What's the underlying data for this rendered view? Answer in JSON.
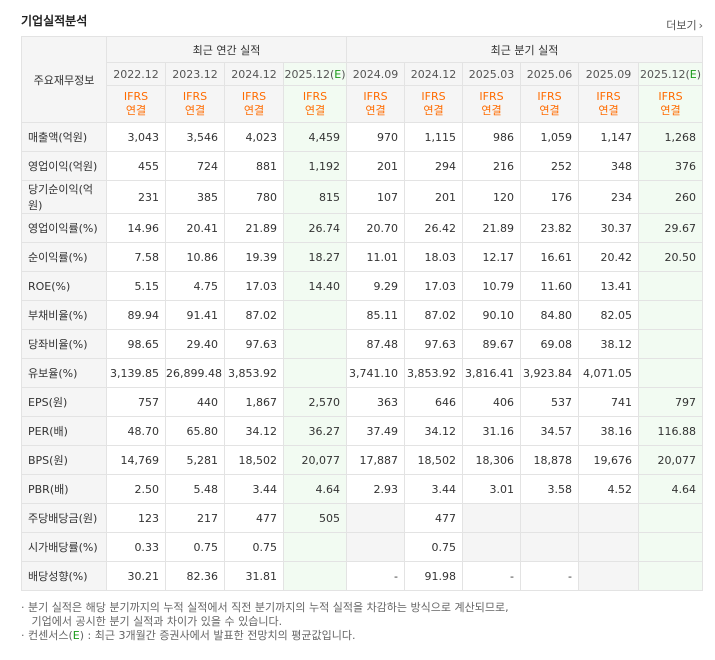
{
  "header": {
    "title": "기업실적분석",
    "more_label": "더보기"
  },
  "table": {
    "corner_label": "주요재무정보",
    "annual_label": "최근 연간 실적",
    "quarter_label": "최근 분기 실적",
    "annual_periods": [
      "2022.12",
      "2023.12",
      "2024.12",
      "2025.12(E)"
    ],
    "quarter_periods": [
      "2024.09",
      "2024.12",
      "2025.03",
      "2025.06",
      "2025.09",
      "2025.12(E)"
    ],
    "basis_line1": "IFRS",
    "basis_line2": "연결",
    "rows": [
      {
        "label": "매출액(억원)",
        "values": [
          "3,043",
          "3,546",
          "4,023",
          "4,459",
          "970",
          "1,115",
          "986",
          "1,059",
          "1,147",
          "1,268"
        ]
      },
      {
        "label": "영업이익(억원)",
        "values": [
          "455",
          "724",
          "881",
          "1,192",
          "201",
          "294",
          "216",
          "252",
          "348",
          "376"
        ]
      },
      {
        "label": "당기순이익(억원)",
        "values": [
          "231",
          "385",
          "780",
          "815",
          "107",
          "201",
          "120",
          "176",
          "234",
          "260"
        ]
      },
      {
        "label": "영업이익률(%)",
        "values": [
          "14.96",
          "20.41",
          "21.89",
          "26.74",
          "20.70",
          "26.42",
          "21.89",
          "23.82",
          "30.37",
          "29.67"
        ]
      },
      {
        "label": "순이익률(%)",
        "values": [
          "7.58",
          "10.86",
          "19.39",
          "18.27",
          "11.01",
          "18.03",
          "12.17",
          "16.61",
          "20.42",
          "20.50"
        ]
      },
      {
        "label": "ROE(%)",
        "values": [
          "5.15",
          "4.75",
          "17.03",
          "14.40",
          "9.29",
          "17.03",
          "10.79",
          "11.60",
          "13.41",
          ""
        ]
      },
      {
        "label": "부채비율(%)",
        "values": [
          "89.94",
          "91.41",
          "87.02",
          "",
          "85.11",
          "87.02",
          "90.10",
          "84.80",
          "82.05",
          ""
        ]
      },
      {
        "label": "당좌비율(%)",
        "values": [
          "98.65",
          "29.40",
          "97.63",
          "",
          "87.48",
          "97.63",
          "89.67",
          "69.08",
          "38.12",
          ""
        ]
      },
      {
        "label": "유보율(%)",
        "values": [
          "3,139.85",
          "26,899.48",
          "3,853.92",
          "",
          "3,741.10",
          "3,853.92",
          "3,816.41",
          "3,923.84",
          "4,071.05",
          ""
        ]
      },
      {
        "label": "EPS(원)",
        "values": [
          "757",
          "440",
          "1,867",
          "2,570",
          "363",
          "646",
          "406",
          "537",
          "741",
          "797"
        ]
      },
      {
        "label": "PER(배)",
        "values": [
          "48.70",
          "65.80",
          "34.12",
          "36.27",
          "37.49",
          "34.12",
          "31.16",
          "34.57",
          "38.16",
          "116.88"
        ]
      },
      {
        "label": "BPS(원)",
        "values": [
          "14,769",
          "5,281",
          "18,502",
          "20,077",
          "17,887",
          "18,502",
          "18,306",
          "18,878",
          "19,676",
          "20,077"
        ]
      },
      {
        "label": "PBR(배)",
        "values": [
          "2.50",
          "5.48",
          "3.44",
          "4.64",
          "2.93",
          "3.44",
          "3.01",
          "3.58",
          "4.52",
          "4.64"
        ]
      },
      {
        "label": "주당배당금(원)",
        "values": [
          "123",
          "217",
          "477",
          "505",
          "",
          "477",
          "",
          "",
          "",
          ""
        ]
      },
      {
        "label": "시가배당률(%)",
        "values": [
          "0.33",
          "0.75",
          "0.75",
          "",
          "",
          "0.75",
          "",
          "",
          "",
          ""
        ]
      },
      {
        "label": "배당성향(%)",
        "values": [
          "30.21",
          "82.36",
          "31.81",
          "",
          "-",
          "91.98",
          "-",
          "-",
          "",
          ""
        ]
      }
    ]
  },
  "notes": {
    "line1": "분기 실적은 해당 분기까지의 누적 실적에서 직전 분기까지의 누적 실적을 차감하는 방식으로 계산되므로,",
    "line2": "기업에서 공시한 분기 실적과 차이가 있을 수 있습니다.",
    "line3_prefix": "컨센서스(",
    "line3_e": "E",
    "line3_suffix": ") : 최근 3개월간 증권사에서 발표한 전망치의 평균값입니다."
  },
  "colors": {
    "estimate_bg": "#f2fbf2",
    "ifrs_text": "#ff6b00",
    "estimate_mark": "#1a9a1a"
  }
}
